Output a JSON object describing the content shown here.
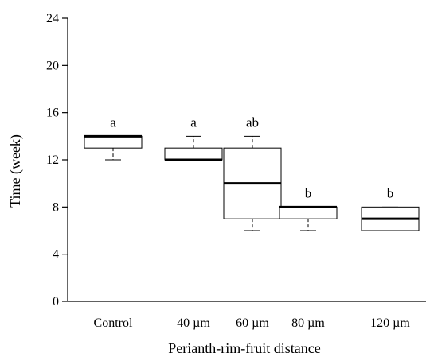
{
  "chart_data": {
    "type": "boxplot",
    "xlabel": "Perianth-rim-fruit distance",
    "ylabel": "Time (week)",
    "ylim": [
      0,
      24
    ],
    "yticks": [
      0,
      4,
      8,
      12,
      16,
      20,
      24
    ],
    "categories": [
      "Control",
      "40 µm",
      "60 µm",
      "80 µm",
      "120 µm"
    ],
    "boxes": [
      {
        "category": "Control",
        "whisker_low": 12,
        "q1": 13,
        "median": 14,
        "q3": 14,
        "whisker_high": 14,
        "group": "a"
      },
      {
        "category": "40 µm",
        "whisker_low": 12,
        "q1": 12,
        "median": 12,
        "q3": 13,
        "whisker_high": 14,
        "group": "a"
      },
      {
        "category": "60 µm",
        "whisker_low": 6,
        "q1": 7,
        "median": 10,
        "q3": 13,
        "whisker_high": 14,
        "group": "ab"
      },
      {
        "category": "80 µm",
        "whisker_low": 6,
        "q1": 7,
        "median": 8,
        "q3": 8,
        "whisker_high": 8,
        "group": "b"
      },
      {
        "category": "120 µm",
        "whisker_low": 6,
        "q1": 6,
        "median": 7,
        "q3": 8,
        "whisker_high": 8,
        "group": "b"
      }
    ],
    "grid": false,
    "legend": "none"
  }
}
